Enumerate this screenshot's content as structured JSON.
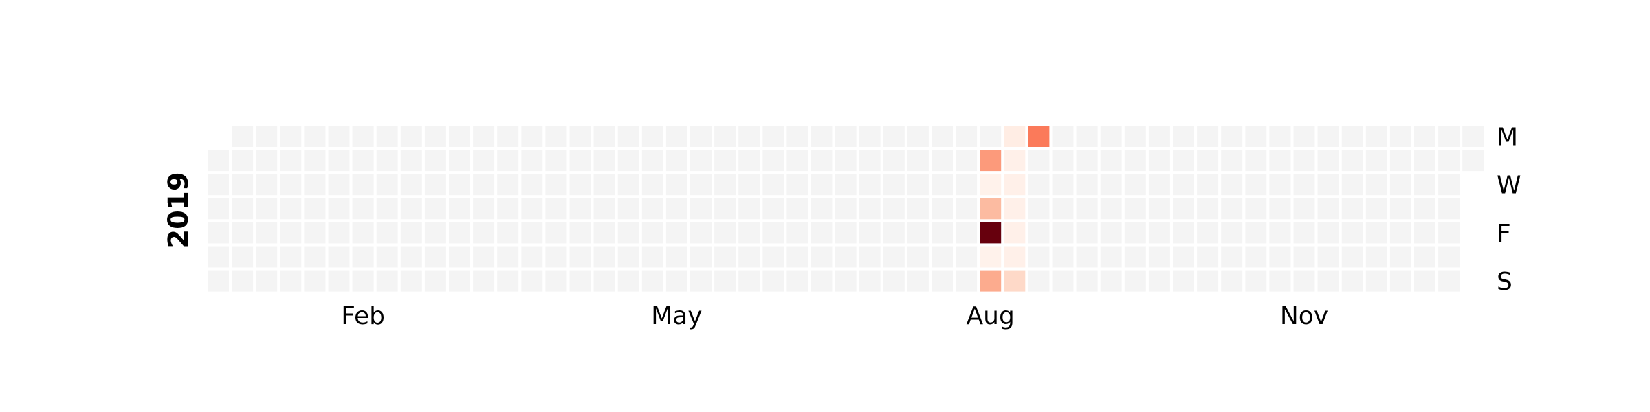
{
  "chart_data": {
    "type": "heatmap",
    "title": "",
    "year": "2019",
    "start_date": "2019-01-01",
    "end_date": "2019-12-31",
    "empty_color": "#f4f4f4",
    "colormap": "Reds",
    "month_labels": [
      {
        "label": "Feb",
        "month": 2
      },
      {
        "label": "May",
        "month": 5
      },
      {
        "label": "Aug",
        "month": 8
      },
      {
        "label": "Nov",
        "month": 11
      }
    ],
    "day_labels": [
      {
        "label": "M",
        "weekday": 0
      },
      {
        "label": "W",
        "weekday": 2
      },
      {
        "label": "F",
        "weekday": 4
      },
      {
        "label": "S",
        "weekday": 6
      }
    ],
    "values": [
      {
        "date": "2019-08-13",
        "value": 0.35
      },
      {
        "date": "2019-08-14",
        "value": 0.02
      },
      {
        "date": "2019-08-15",
        "value": 0.25
      },
      {
        "date": "2019-08-16",
        "value": 1.0
      },
      {
        "date": "2019-08-17",
        "value": 0.02
      },
      {
        "date": "2019-08-18",
        "value": 0.3
      },
      {
        "date": "2019-08-19",
        "value": 0.05
      },
      {
        "date": "2019-08-20",
        "value": 0.03
      },
      {
        "date": "2019-08-21",
        "value": 0.03
      },
      {
        "date": "2019-08-22",
        "value": 0.03
      },
      {
        "date": "2019-08-23",
        "value": 0.03
      },
      {
        "date": "2019-08-24",
        "value": 0.03
      },
      {
        "date": "2019-08-25",
        "value": 0.15
      },
      {
        "date": "2019-08-26",
        "value": 0.45
      }
    ]
  }
}
